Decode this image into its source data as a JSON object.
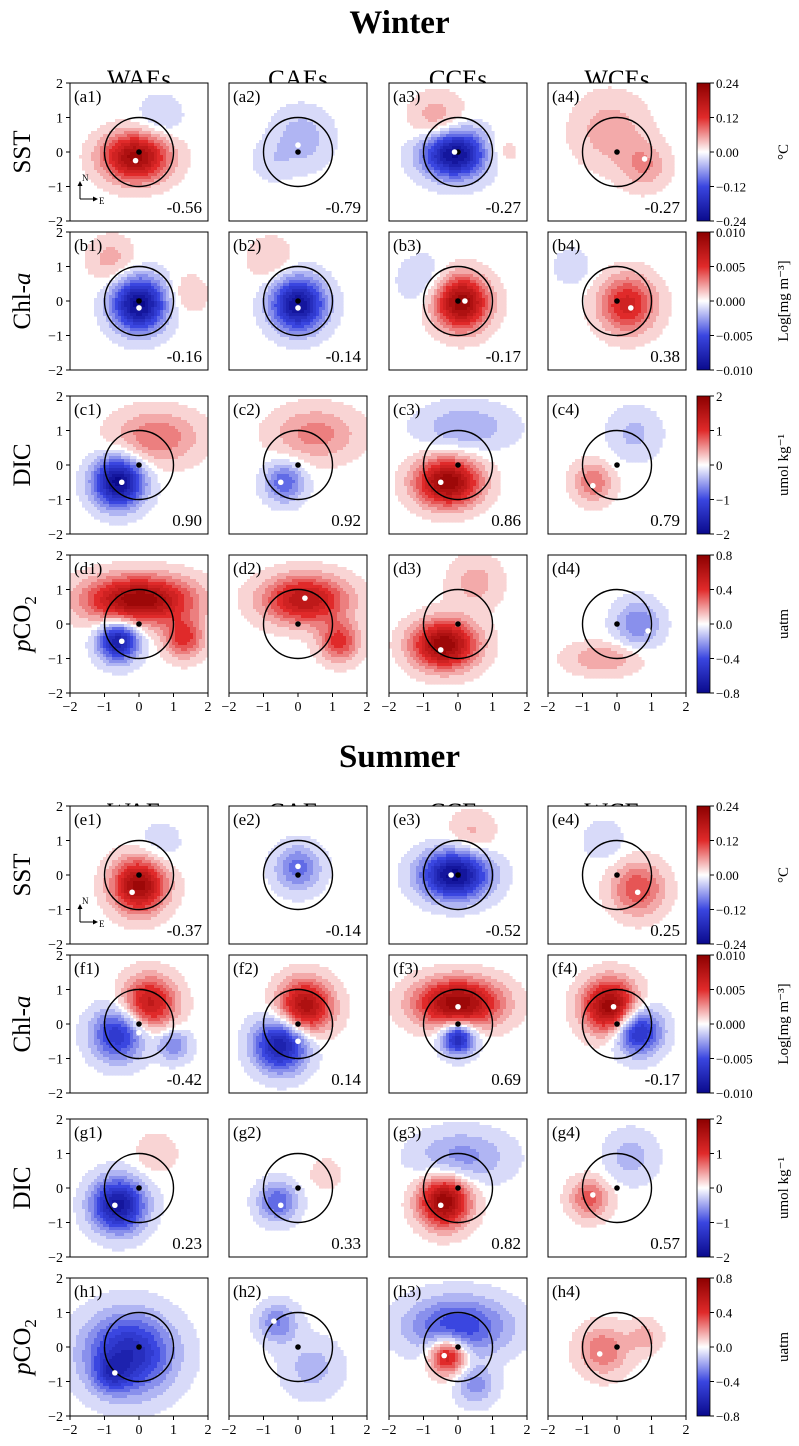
{
  "figure": {
    "colors": {
      "neg_dark": "#0a0a8c",
      "neg_mid": "#3a46e0",
      "neutral": "#ffffff",
      "pos_mid": "#e02a2a",
      "pos_dark": "#8c0000",
      "ring": "#000000"
    },
    "x_ticks": [
      "−2",
      "−1",
      "0",
      "1",
      "2"
    ],
    "y_ticks": [
      "2",
      "1",
      "0",
      "−1",
      "−2"
    ],
    "seasons": [
      {
        "title": "Winter",
        "columns": [
          "WAEs",
          "CAEs",
          "CCEs",
          "WCEs"
        ],
        "rows": [
          {
            "var": "SST",
            "cbar": {
              "ticks": [
                "0.24",
                "0.12",
                "0.00",
                "−0.12",
                "−0.24"
              ],
              "unit": "°C"
            }
          },
          {
            "var": "Chl-a",
            "cbar": {
              "ticks": [
                "0.010",
                "0.005",
                "0.000",
                "−0.005",
                "−0.010"
              ],
              "unit": "Log[mg m⁻³]"
            }
          },
          {
            "var": "DIC",
            "cbar": {
              "ticks": [
                "2",
                "1",
                "0",
                "−1",
                "−2"
              ],
              "unit": "umol kg⁻¹"
            }
          },
          {
            "var": "pCO2",
            "cbar": {
              "ticks": [
                "0.8",
                "0.4",
                "0.0",
                "−0.4",
                "−0.8"
              ],
              "unit": "uatm"
            }
          }
        ]
      },
      {
        "title": "Summer",
        "columns": [
          "WAEs",
          "CAEs",
          "CCEs",
          "WCEs"
        ],
        "rows": [
          {
            "var": "SST",
            "cbar": {
              "ticks": [
                "0.24",
                "0.12",
                "0.00",
                "−0.12",
                "−0.24"
              ],
              "unit": "°C"
            }
          },
          {
            "var": "Chl-a",
            "cbar": {
              "ticks": [
                "0.010",
                "0.005",
                "0.000",
                "−0.005",
                "−0.010"
              ],
              "unit": "Log[mg m⁻³]"
            }
          },
          {
            "var": "DIC",
            "cbar": {
              "ticks": [
                "2",
                "1",
                "0",
                "−1",
                "−2"
              ],
              "unit": "umol kg⁻¹"
            }
          },
          {
            "var": "pCO2",
            "cbar": {
              "ticks": [
                "0.8",
                "0.4",
                "0.0",
                "−0.4",
                "−0.8"
              ],
              "unit": "uatm"
            }
          }
        ]
      }
    ],
    "compass": {
      "n": "N",
      "e": "E"
    }
  },
  "chart_data": {
    "type": "heatmap",
    "x_range": [
      -2,
      2
    ],
    "y_range": [
      -2,
      2
    ],
    "colorbar_ranges": {
      "SST": [
        -0.24,
        0.24
      ],
      "Chl-a": [
        -0.01,
        0.01
      ],
      "DIC": [
        -2,
        2
      ],
      "pCO2": [
        -0.8,
        0.8
      ]
    },
    "panels": [
      {
        "label": "(a1)",
        "value": "-0.56",
        "blobs": [
          {
            "x": -0.1,
            "y": -0.15,
            "r": 0.9,
            "a": 0.9,
            "sx": 1.1,
            "sy": 0.8
          },
          {
            "x": 0.6,
            "y": 1.0,
            "r": 0.7,
            "a": -0.15
          }
        ],
        "white_dot": [
          -0.1,
          -0.25
        ]
      },
      {
        "label": "(a2)",
        "value": "-0.79",
        "blobs": [
          {
            "x": 0.1,
            "y": 0.4,
            "r": 0.9,
            "a": -0.22
          },
          {
            "x": -0.8,
            "y": -0.3,
            "r": 0.6,
            "a": -0.1
          }
        ],
        "white_dot": [
          0.0,
          0.2
        ]
      },
      {
        "label": "(a3)",
        "value": "-0.27",
        "blobs": [
          {
            "x": -0.1,
            "y": -0.05,
            "r": 0.85,
            "a": -1.0,
            "sx": 1.15,
            "sy": 0.85
          },
          {
            "x": -0.6,
            "y": 0.9,
            "r": 0.8,
            "a": 0.25
          },
          {
            "x": 1.2,
            "y": 0.0,
            "r": 0.6,
            "a": 0.15
          }
        ],
        "white_dot": [
          -0.1,
          0.0
        ]
      },
      {
        "label": "(a4)",
        "value": "-0.27",
        "blobs": [
          {
            "x": -0.2,
            "y": 0.6,
            "r": 1.1,
            "a": 0.22
          },
          {
            "x": 0.8,
            "y": -0.4,
            "r": 0.7,
            "a": 0.25
          }
        ],
        "white_dot": [
          0.8,
          -0.2
        ]
      },
      {
        "label": "(b1)",
        "value": "-0.16",
        "blobs": [
          {
            "x": 0.0,
            "y": -0.1,
            "r": 0.8,
            "a": -1.0
          },
          {
            "x": -0.8,
            "y": 1.2,
            "r": 0.7,
            "a": 0.2
          },
          {
            "x": 1.4,
            "y": 0.2,
            "r": 0.6,
            "a": 0.15
          }
        ],
        "white_dot": [
          0.0,
          -0.2
        ]
      },
      {
        "label": "(b2)",
        "value": "-0.14",
        "blobs": [
          {
            "x": 0.0,
            "y": -0.1,
            "r": 0.8,
            "a": -0.95
          },
          {
            "x": -0.8,
            "y": 1.2,
            "r": 0.7,
            "a": 0.15
          }
        ],
        "white_dot": [
          0.0,
          -0.2
        ]
      },
      {
        "label": "(b3)",
        "value": "-0.17",
        "blobs": [
          {
            "x": 0.1,
            "y": -0.05,
            "r": 0.8,
            "a": 0.95
          },
          {
            "x": -1.0,
            "y": 0.6,
            "r": 0.8,
            "a": -0.15
          }
        ],
        "white_dot": [
          0.2,
          0.0
        ]
      },
      {
        "label": "(b4)",
        "value": "0.38",
        "blobs": [
          {
            "x": 0.3,
            "y": -0.1,
            "r": 0.85,
            "a": 0.6
          },
          {
            "x": -1.3,
            "y": 1.0,
            "r": 0.6,
            "a": -0.12
          }
        ],
        "white_dot": [
          0.4,
          -0.2
        ]
      },
      {
        "label": "(c1)",
        "value": "0.90",
        "blobs": [
          {
            "x": -0.6,
            "y": -0.5,
            "r": 0.75,
            "a": -1.0
          },
          {
            "x": 0.5,
            "y": 0.8,
            "r": 1.0,
            "a": 0.35,
            "sx": 1.3,
            "sy": 0.8
          }
        ],
        "white_dot": [
          -0.5,
          -0.5
        ]
      },
      {
        "label": "(c2)",
        "value": "0.92",
        "blobs": [
          {
            "x": -0.4,
            "y": -0.5,
            "r": 0.6,
            "a": -0.45
          },
          {
            "x": 0.5,
            "y": 0.9,
            "r": 1.0,
            "a": 0.3,
            "sx": 1.3,
            "sy": 0.8
          }
        ],
        "white_dot": [
          -0.5,
          -0.5
        ]
      },
      {
        "label": "(c3)",
        "value": "0.86",
        "blobs": [
          {
            "x": -0.3,
            "y": -0.5,
            "r": 0.8,
            "a": 0.95,
            "sx": 1.2,
            "sy": 0.9
          },
          {
            "x": 0.2,
            "y": 1.1,
            "r": 1.0,
            "a": -0.25,
            "sx": 1.4,
            "sy": 0.7
          }
        ],
        "white_dot": [
          -0.5,
          -0.5
        ]
      },
      {
        "label": "(c4)",
        "value": "0.79",
        "blobs": [
          {
            "x": -0.7,
            "y": -0.5,
            "r": 0.6,
            "a": 0.35
          },
          {
            "x": 0.5,
            "y": 0.9,
            "r": 0.8,
            "a": -0.18
          }
        ],
        "white_dot": [
          -0.7,
          -0.6
        ]
      },
      {
        "label": "(d1)",
        "value": "",
        "blobs": [
          {
            "x": 0.0,
            "y": 0.7,
            "r": 1.0,
            "a": 0.95,
            "sx": 1.6,
            "sy": 0.7
          },
          {
            "x": -0.6,
            "y": -0.5,
            "r": 0.6,
            "a": -0.85
          },
          {
            "x": 1.3,
            "y": -0.4,
            "r": 0.6,
            "a": 0.5
          }
        ],
        "white_dot": [
          -0.5,
          -0.5
        ]
      },
      {
        "label": "(d2)",
        "value": "",
        "blobs": [
          {
            "x": 0.2,
            "y": 0.7,
            "r": 0.9,
            "a": 0.75,
            "sx": 1.4,
            "sy": 0.8
          },
          {
            "x": 1.2,
            "y": -0.5,
            "r": 0.6,
            "a": 0.5
          }
        ],
        "white_dot": [
          0.2,
          0.75
        ]
      },
      {
        "label": "(d3)",
        "value": "",
        "blobs": [
          {
            "x": -0.4,
            "y": -0.6,
            "r": 0.8,
            "a": 0.95,
            "sx": 1.2,
            "sy": 0.9
          },
          {
            "x": 0.5,
            "y": 1.2,
            "r": 0.8,
            "a": 0.2
          }
        ],
        "white_dot": [
          -0.5,
          -0.75
        ]
      },
      {
        "label": "(d4)",
        "value": "",
        "blobs": [
          {
            "x": 0.6,
            "y": 0.0,
            "r": 0.7,
            "a": -0.35
          },
          {
            "x": -0.4,
            "y": -1.0,
            "r": 0.8,
            "a": 0.25,
            "sx": 1.4,
            "sy": 0.6
          }
        ],
        "white_dot": [
          0.9,
          -0.2
        ]
      },
      {
        "label": "(e1)",
        "value": "-0.37",
        "blobs": [
          {
            "x": 0.0,
            "y": -0.3,
            "r": 0.8,
            "a": 0.9
          },
          {
            "x": 0.6,
            "y": 0.9,
            "r": 0.7,
            "a": -0.12
          }
        ],
        "white_dot": [
          -0.2,
          -0.5
        ]
      },
      {
        "label": "(e2)",
        "value": "-0.14",
        "blobs": [
          {
            "x": 0.0,
            "y": 0.2,
            "r": 0.7,
            "a": -0.4
          }
        ],
        "white_dot": [
          0.0,
          0.25
        ]
      },
      {
        "label": "(e3)",
        "value": "-0.52",
        "blobs": [
          {
            "x": -0.1,
            "y": 0.0,
            "r": 0.85,
            "a": -1.0,
            "sx": 1.2,
            "sy": 0.85
          },
          {
            "x": 0.4,
            "y": 1.2,
            "r": 0.7,
            "a": 0.18
          }
        ],
        "white_dot": [
          -0.2,
          0.0
        ]
      },
      {
        "label": "(e4)",
        "value": "0.25",
        "blobs": [
          {
            "x": 0.6,
            "y": -0.4,
            "r": 0.8,
            "a": 0.45
          },
          {
            "x": -0.4,
            "y": 1.0,
            "r": 0.6,
            "a": -0.15
          }
        ],
        "white_dot": [
          0.6,
          -0.5
        ]
      },
      {
        "label": "(f1)",
        "value": "-0.42",
        "blobs": [
          {
            "x": 0.3,
            "y": 0.6,
            "r": 0.8,
            "a": 0.7
          },
          {
            "x": -0.6,
            "y": -0.3,
            "r": 0.8,
            "a": -0.65
          },
          {
            "x": 1.0,
            "y": -0.6,
            "r": 0.5,
            "a": -0.35
          }
        ],
        "white_dot": [
          0.0,
          -0.25
        ]
      },
      {
        "label": "(f2)",
        "value": "0.14",
        "blobs": [
          {
            "x": 0.2,
            "y": 0.5,
            "r": 0.8,
            "a": 0.85
          },
          {
            "x": -0.5,
            "y": -0.6,
            "r": 0.8,
            "a": -0.85
          }
        ],
        "white_dot": [
          0.0,
          -0.5
        ]
      },
      {
        "label": "(f3)",
        "value": "0.69",
        "blobs": [
          {
            "x": 0.0,
            "y": 0.6,
            "r": 0.9,
            "a": 0.95,
            "sx": 1.4,
            "sy": 0.8
          },
          {
            "x": 0.0,
            "y": -0.4,
            "r": 0.5,
            "a": -0.8
          }
        ],
        "white_dot": [
          0.0,
          0.5
        ]
      },
      {
        "label": "(f4)",
        "value": "-0.17",
        "blobs": [
          {
            "x": -0.2,
            "y": 0.5,
            "r": 0.8,
            "a": 0.95
          },
          {
            "x": 0.6,
            "y": -0.2,
            "r": 0.7,
            "a": -0.75
          }
        ],
        "white_dot": [
          -0.1,
          0.5
        ]
      },
      {
        "label": "(g1)",
        "value": "0.23",
        "blobs": [
          {
            "x": -0.6,
            "y": -0.5,
            "r": 0.8,
            "a": -0.9
          },
          {
            "x": 0.5,
            "y": 1.0,
            "r": 0.6,
            "a": 0.15
          }
        ],
        "white_dot": [
          -0.7,
          -0.5
        ]
      },
      {
        "label": "(g2)",
        "value": "0.33",
        "blobs": [
          {
            "x": -0.6,
            "y": -0.4,
            "r": 0.6,
            "a": -0.45
          },
          {
            "x": 0.8,
            "y": 0.4,
            "r": 0.5,
            "a": 0.12
          }
        ],
        "white_dot": [
          -0.5,
          -0.5
        ]
      },
      {
        "label": "(g3)",
        "value": "0.82",
        "blobs": [
          {
            "x": -0.4,
            "y": -0.4,
            "r": 0.75,
            "a": 0.95
          },
          {
            "x": 0.1,
            "y": 0.9,
            "r": 1.0,
            "a": -0.3,
            "sx": 1.4,
            "sy": 0.8
          }
        ],
        "white_dot": [
          -0.5,
          -0.5
        ]
      },
      {
        "label": "(g4)",
        "value": "0.57",
        "blobs": [
          {
            "x": -0.8,
            "y": -0.3,
            "r": 0.6,
            "a": 0.4
          },
          {
            "x": 0.4,
            "y": 0.9,
            "r": 0.8,
            "a": -0.2
          }
        ],
        "white_dot": [
          -0.7,
          -0.2
        ]
      },
      {
        "label": "(h1)",
        "value": "",
        "blobs": [
          {
            "x": -0.3,
            "y": -0.2,
            "r": 1.2,
            "a": -0.75,
            "sx": 1.1,
            "sy": 1.0
          },
          {
            "x": -0.8,
            "y": -0.8,
            "r": 0.5,
            "a": -0.3
          }
        ],
        "white_dot": [
          -0.7,
          -0.75
        ]
      },
      {
        "label": "(h2)",
        "value": "",
        "blobs": [
          {
            "x": -0.6,
            "y": 0.7,
            "r": 0.6,
            "a": -0.35
          },
          {
            "x": 0.4,
            "y": -0.6,
            "r": 0.9,
            "a": -0.2
          }
        ],
        "white_dot": [
          -0.7,
          0.75
        ]
      },
      {
        "label": "(h3)",
        "value": "",
        "blobs": [
          {
            "x": -0.3,
            "y": -0.25,
            "r": 0.55,
            "a": 0.75
          },
          {
            "x": 0.0,
            "y": 0.6,
            "r": 1.1,
            "a": -0.55,
            "sx": 1.4,
            "sy": 0.8
          },
          {
            "x": 0.5,
            "y": -1.1,
            "r": 0.6,
            "a": -0.3
          }
        ],
        "white_dot": [
          -0.4,
          -0.25
        ]
      },
      {
        "label": "(h4)",
        "value": "",
        "blobs": [
          {
            "x": -0.4,
            "y": -0.1,
            "r": 0.75,
            "a": 0.35
          },
          {
            "x": 0.8,
            "y": 0.3,
            "r": 0.5,
            "a": 0.2
          }
        ],
        "white_dot": [
          -0.5,
          -0.2
        ]
      }
    ]
  }
}
